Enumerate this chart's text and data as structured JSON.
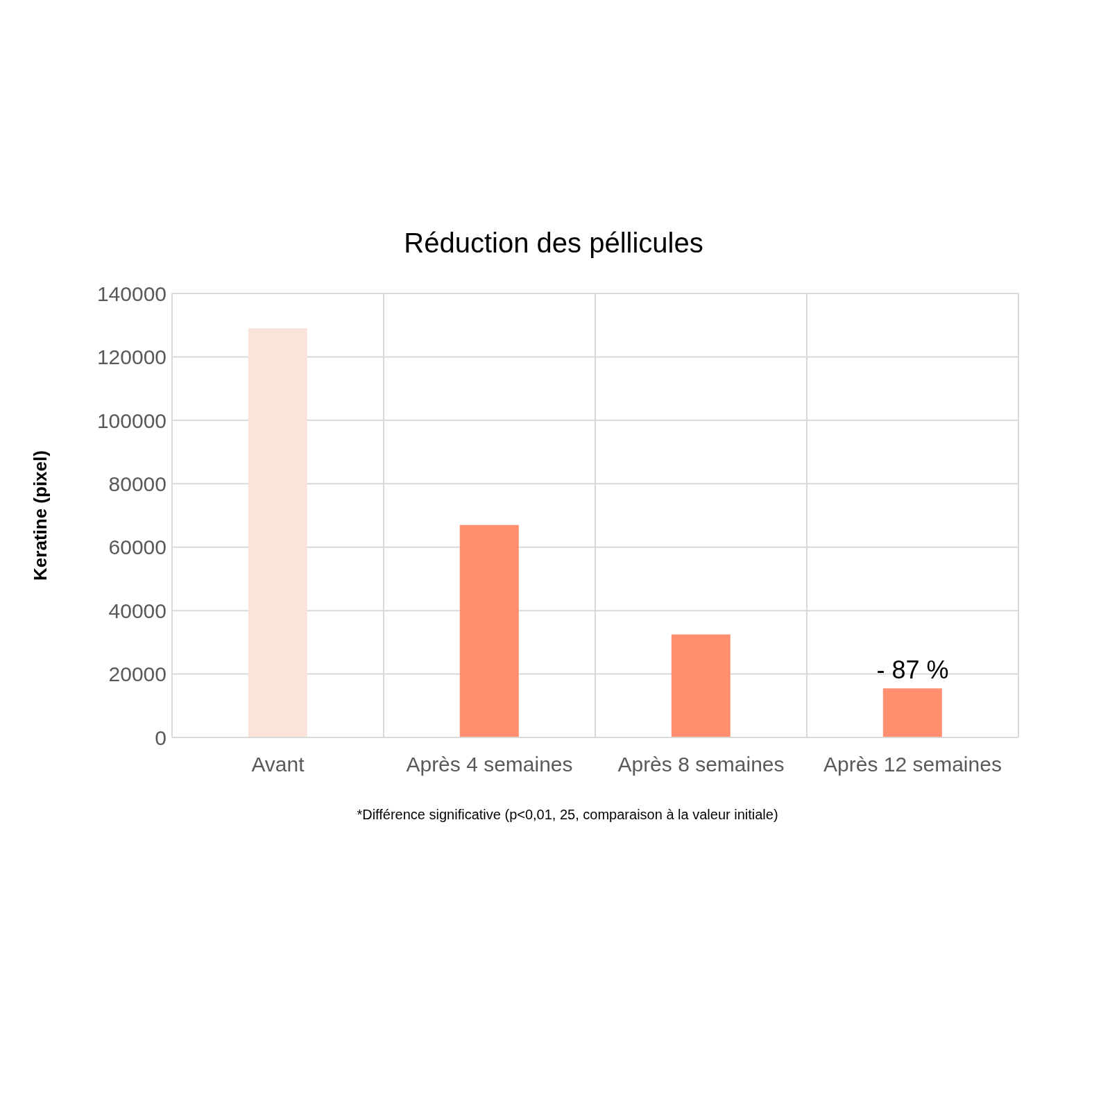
{
  "chart_data": {
    "type": "bar",
    "title": "Réduction des péllicules",
    "ylabel": "Keratine (pixel)",
    "categories": [
      "Avant",
      "Après 4 semaines",
      "Après 8 semaines",
      "Après 12 semaines"
    ],
    "values": [
      129000,
      67000,
      32500,
      15500
    ],
    "colors": [
      "#fae3d9",
      "#ff8f6e",
      "#ff8f6e",
      "#ff8f6e"
    ],
    "ylim": [
      0,
      140000
    ],
    "yticks": [
      0,
      20000,
      40000,
      60000,
      80000,
      100000,
      120000,
      140000
    ],
    "grid": true,
    "annotations": [
      {
        "text": "- 87 %",
        "x": "Après 12 semaines",
        "y": 15500
      },
      "*Différence significative (p<0,01, 25, comparaison à la valeur initiale)"
    ]
  }
}
